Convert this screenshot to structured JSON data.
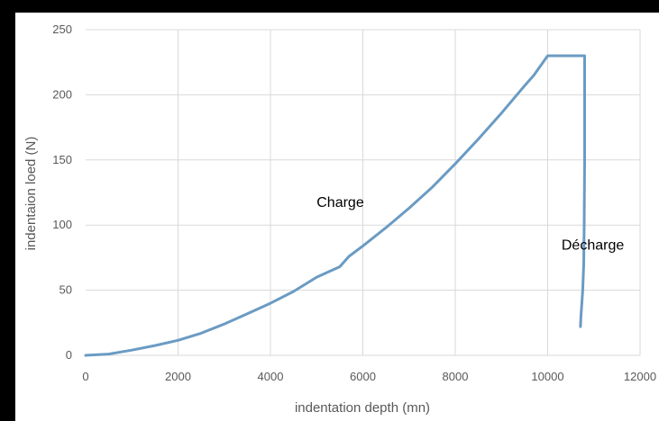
{
  "chart_data": {
    "type": "line",
    "title": "",
    "xlabel": "indentation depth (mn)",
    "ylabel": "indentaion loed (N)",
    "xlim": [
      0,
      12000
    ],
    "ylim": [
      0,
      250
    ],
    "xticks": [
      0,
      2000,
      4000,
      6000,
      8000,
      10000,
      12000
    ],
    "yticks": [
      0,
      50,
      100,
      150,
      200,
      250
    ],
    "grid": true,
    "legend": "none",
    "series": [
      {
        "color": "#6a9bc3",
        "x": [
          0,
          500,
          1000,
          1500,
          2000,
          2500,
          3000,
          3500,
          4000,
          4500,
          5000,
          5500,
          5700,
          6000,
          6500,
          7000,
          7500,
          8000,
          8500,
          9000,
          9500,
          9700,
          10000,
          10500,
          10800,
          10800,
          10790,
          10780,
          10760,
          10740,
          10720,
          10710
        ],
        "y": [
          0,
          1,
          4,
          7.5,
          11.5,
          17,
          24,
          32,
          40,
          49,
          60,
          68,
          76,
          84,
          98,
          113,
          129,
          147,
          166,
          186,
          207,
          215,
          230,
          230,
          230,
          150,
          100,
          70,
          50,
          40,
          30,
          22
        ]
      }
    ],
    "annotations": [
      {
        "text": "Charge",
        "x": 5000,
        "y": 114
      },
      {
        "text": "Décharge",
        "x": 10300,
        "y": 81
      }
    ]
  }
}
